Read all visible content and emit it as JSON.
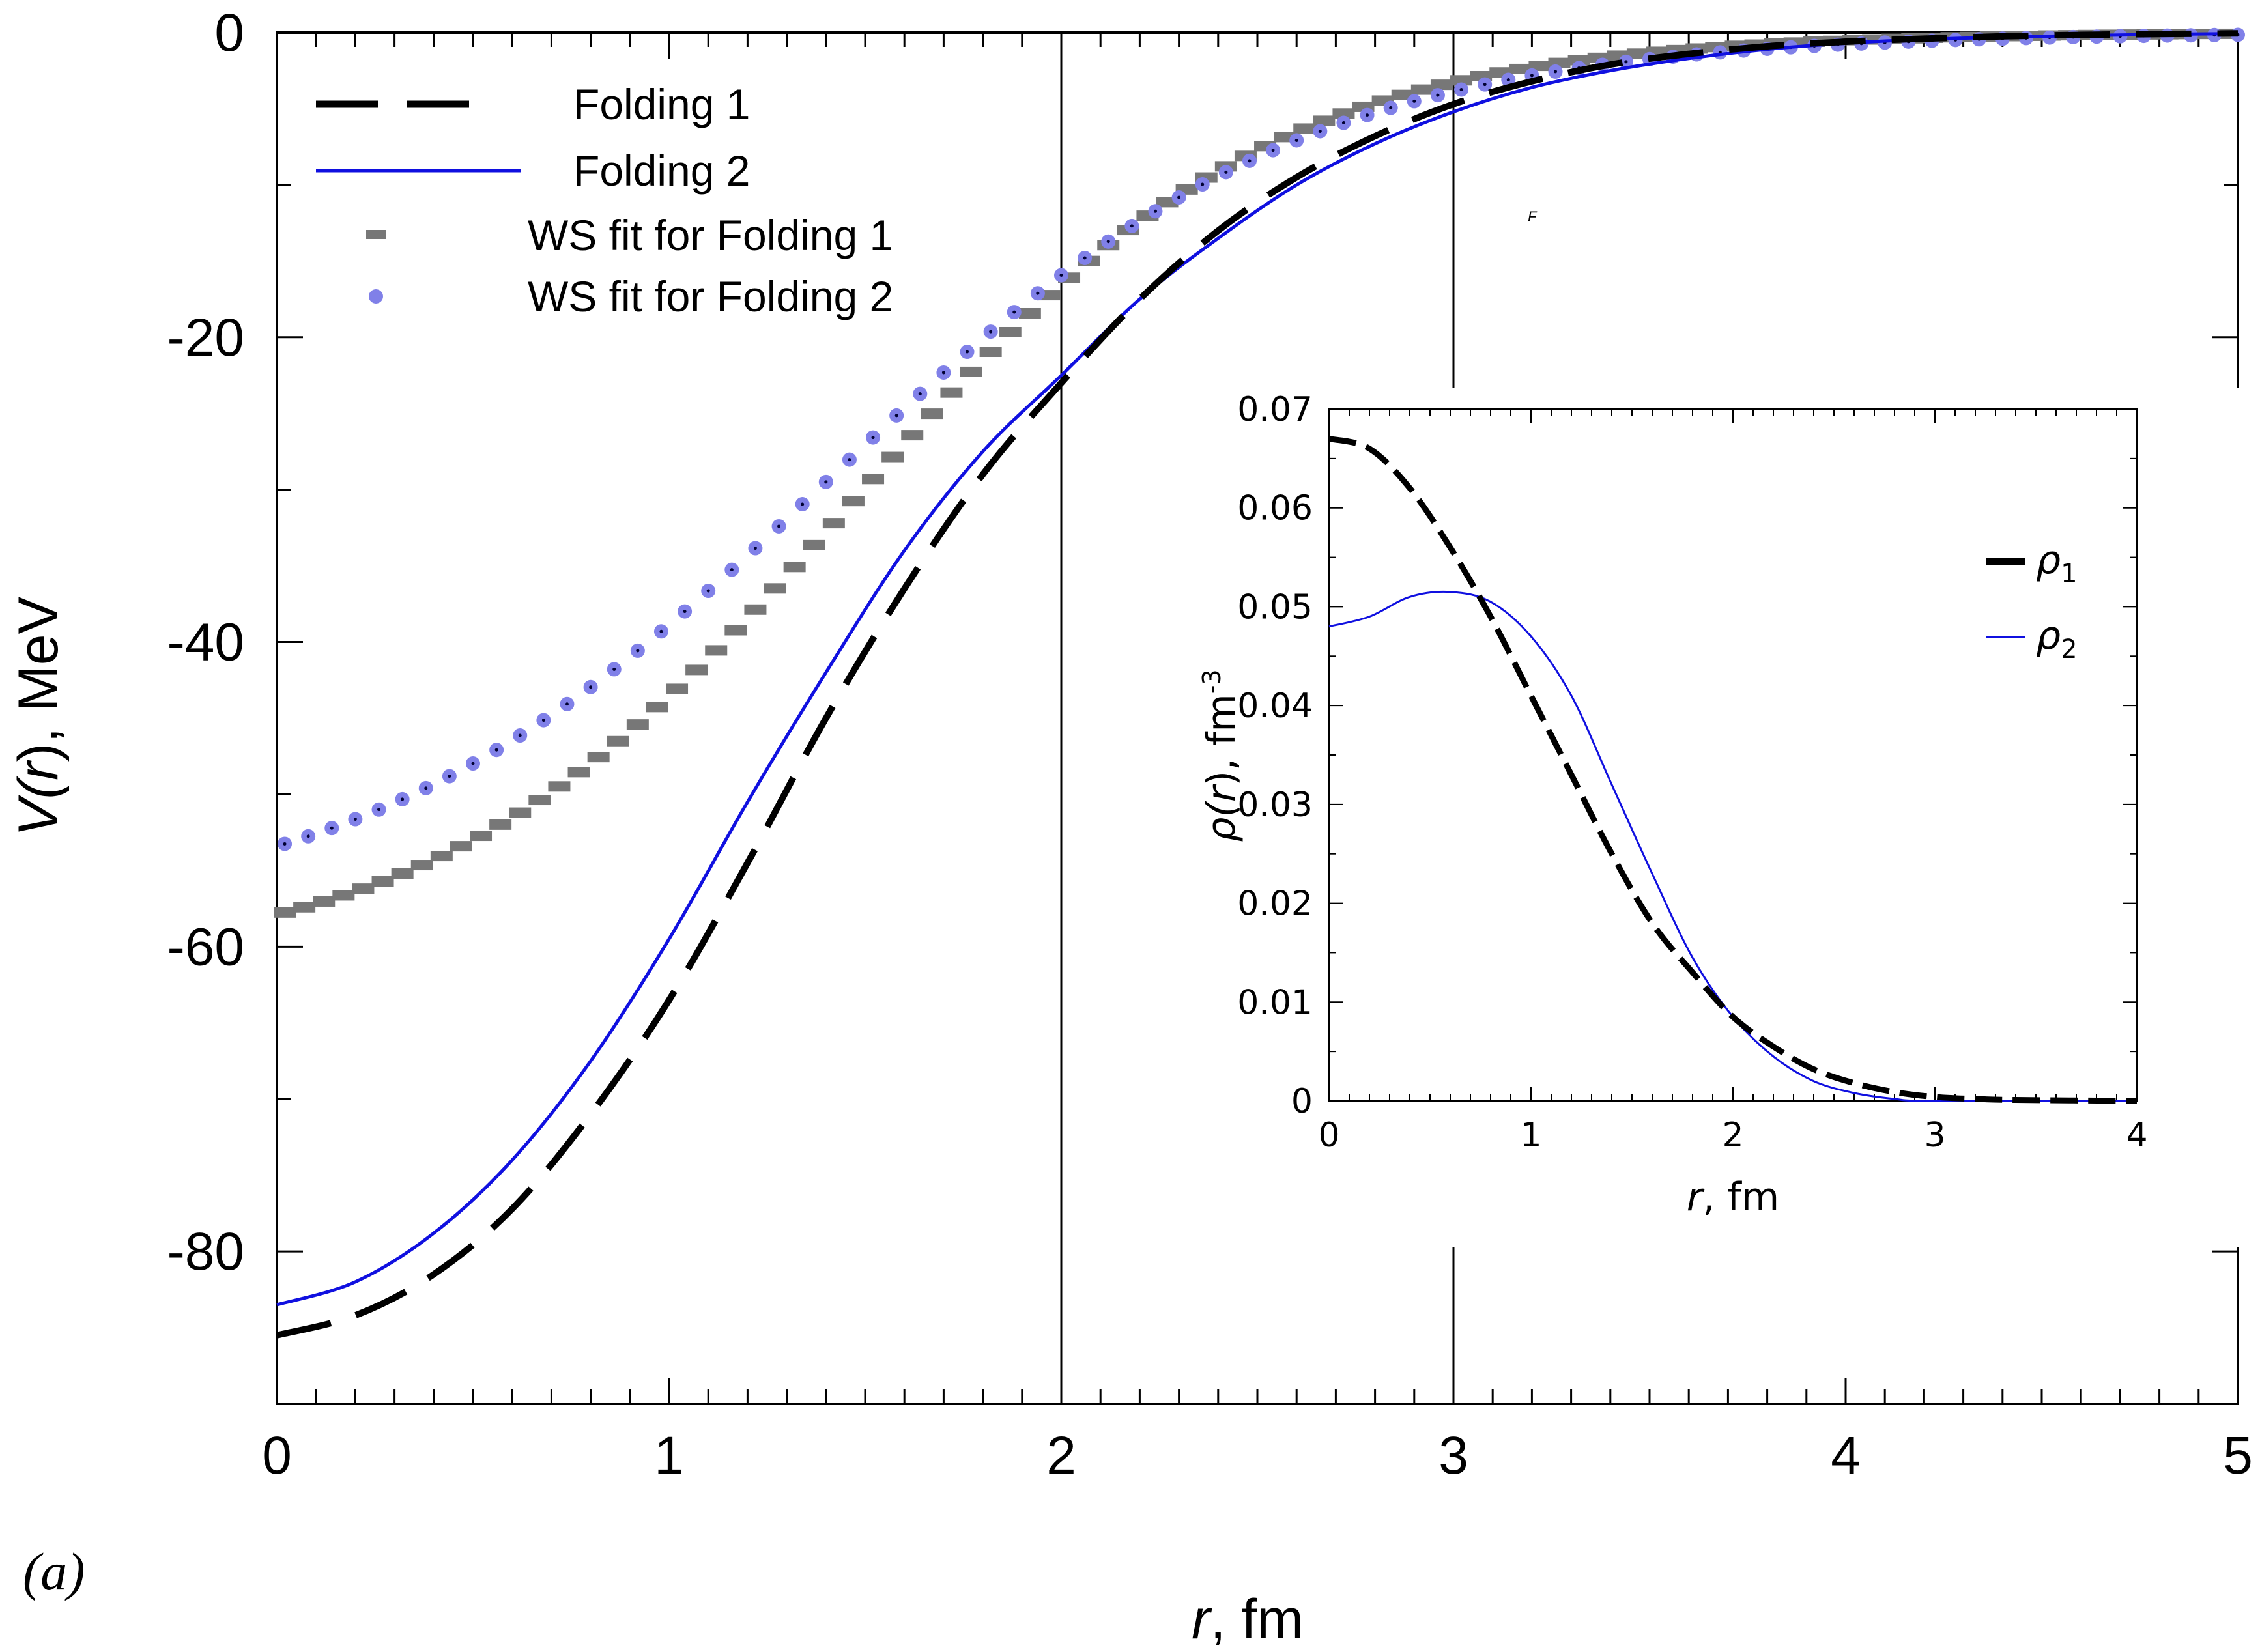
{
  "panel_label": "(a)",
  "stray_mark": "F",
  "colors": {
    "folding1": "#000000",
    "folding2": "#1010e0",
    "ws1": "#777777",
    "ws2": "#8080e8"
  },
  "chart_data": [
    {
      "type": "line",
      "title": "",
      "xlabel": {
        "var": "r",
        "unit": ", fm"
      },
      "ylabel": {
        "pre": "V(",
        "var": "r",
        "post": "), MeV"
      },
      "xlim": [
        0,
        5
      ],
      "ylim": [
        -90,
        0
      ],
      "xticks": [
        0,
        1,
        2,
        3,
        4,
        5
      ],
      "xtick_labels": [
        "0",
        "1",
        "2",
        "3",
        "4",
        "5"
      ],
      "yticks": [
        0,
        -20,
        -40,
        -60,
        -80
      ],
      "ytick_labels": [
        "0",
        "-20",
        "-40",
        "-60",
        "-80"
      ],
      "x_minor_step": 0.1,
      "y_minor_step": 10,
      "vlines": [
        2,
        3
      ],
      "legend_position": "top-left",
      "series": [
        {
          "name": "Folding 1",
          "style": "dashed",
          "color": "#000000",
          "x": [
            0,
            0.2,
            0.4,
            0.6,
            0.8,
            1.0,
            1.2,
            1.4,
            1.6,
            1.8,
            2.0,
            2.2,
            2.4,
            2.6,
            2.8,
            3.0,
            3.2,
            3.4,
            3.6,
            3.8,
            4.0,
            4.2,
            4.4,
            4.6,
            4.8,
            5.0
          ],
          "y": [
            -85.5,
            -84.2,
            -81.5,
            -77.2,
            -71.0,
            -63.5,
            -54.5,
            -45.0,
            -36.5,
            -29.0,
            -23.0,
            -17.5,
            -13.0,
            -9.5,
            -6.8,
            -4.7,
            -3.2,
            -2.1,
            -1.4,
            -0.9,
            -0.6,
            -0.4,
            -0.25,
            -0.15,
            -0.1,
            -0.05
          ]
        },
        {
          "name": "Folding 2",
          "style": "solid",
          "color": "#1010e0",
          "x": [
            0,
            0.2,
            0.4,
            0.6,
            0.8,
            1.0,
            1.2,
            1.4,
            1.6,
            1.8,
            2.0,
            2.2,
            2.4,
            2.6,
            2.8,
            3.0,
            3.2,
            3.4,
            3.6,
            3.8,
            4.0,
            4.2,
            4.4,
            4.6,
            4.8,
            5.0
          ],
          "y": [
            -83.5,
            -82.0,
            -78.8,
            -74.0,
            -67.5,
            -59.5,
            -50.5,
            -42.0,
            -34.0,
            -27.5,
            -22.5,
            -17.5,
            -13.5,
            -10.0,
            -7.3,
            -5.2,
            -3.6,
            -2.5,
            -1.7,
            -1.1,
            -0.7,
            -0.45,
            -0.3,
            -0.2,
            -0.12,
            -0.07
          ]
        },
        {
          "name": "WS fit for Folding 1",
          "style": "square-markers",
          "color": "#777777",
          "V0": -61.5,
          "R": 1.47,
          "a": 0.53,
          "step": 0.05
        },
        {
          "name": "WS fit for Folding 2",
          "style": "circle-markers",
          "color": "#8080e8",
          "V0": -58.5,
          "R": 1.41,
          "a": 0.6,
          "step": 0.06
        }
      ]
    },
    {
      "type": "line",
      "title": "",
      "position": "inset",
      "xlabel": {
        "var": "r",
        "unit": ", fm"
      },
      "ylabel": {
        "pre": "ρ(",
        "var": "r",
        "post": "), fm",
        "sup": "-3"
      },
      "xlim": [
        0,
        4
      ],
      "ylim": [
        0,
        0.07
      ],
      "xticks": [
        0,
        1,
        2,
        3,
        4
      ],
      "xtick_labels": [
        "0",
        "1",
        "2",
        "3",
        "4"
      ],
      "yticks": [
        0,
        0.01,
        0.02,
        0.03,
        0.04,
        0.05,
        0.06,
        0.07
      ],
      "ytick_labels": [
        "0",
        "0.01",
        "0.02",
        "0.03",
        "0.04",
        "0.05",
        "0.06",
        "0.07"
      ],
      "x_minor_step": 0.1,
      "y_minor_step": 0.005,
      "legend_position": "right",
      "series": [
        {
          "name": "ρ",
          "sub": "1",
          "style": "dashed",
          "color": "#000000",
          "x": [
            0,
            0.2,
            0.4,
            0.6,
            0.8,
            1.0,
            1.2,
            1.4,
            1.6,
            1.8,
            2.0,
            2.2,
            2.4,
            2.6,
            2.8,
            3.0,
            3.2,
            3.4,
            4.0
          ],
          "y": [
            0.067,
            0.066,
            0.062,
            0.056,
            0.049,
            0.041,
            0.033,
            0.025,
            0.018,
            0.013,
            0.0085,
            0.0055,
            0.0032,
            0.0018,
            0.0009,
            0.0004,
            0.0002,
            0.0001,
            0
          ]
        },
        {
          "name": "ρ",
          "sub": "2",
          "style": "solid",
          "color": "#1010e0",
          "x": [
            0,
            0.2,
            0.4,
            0.6,
            0.8,
            1.0,
            1.2,
            1.4,
            1.6,
            1.8,
            2.0,
            2.2,
            2.4,
            2.6,
            2.8,
            3.0,
            4.0
          ],
          "y": [
            0.048,
            0.049,
            0.051,
            0.0515,
            0.0505,
            0.047,
            0.041,
            0.032,
            0.023,
            0.0145,
            0.0085,
            0.0045,
            0.002,
            0.0008,
            0.0002,
            0.0,
            0
          ]
        }
      ]
    }
  ]
}
